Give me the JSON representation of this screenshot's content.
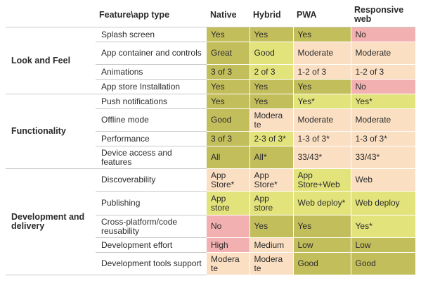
{
  "header": {
    "feature_label": "Feature\\app type",
    "columns": [
      "Native",
      "Hybrid",
      "PWA",
      "Responsive web"
    ]
  },
  "colors": {
    "strong": "#c3be5c",
    "good": "#e3e37c",
    "moderate": "#fbdfc3",
    "no": "#f2b1b0"
  },
  "groups": [
    {
      "category": "Look and Feel",
      "rows": [
        {
          "feature": "Splash screen",
          "cells": [
            {
              "text": "Yes",
              "tone": "great"
            },
            {
              "text": "Yes",
              "tone": "great"
            },
            {
              "text": "Yes",
              "tone": "great"
            },
            {
              "text": "No",
              "tone": "no"
            }
          ]
        },
        {
          "feature": "App container and controls",
          "cells": [
            {
              "text": "Great",
              "tone": "great"
            },
            {
              "text": "Good",
              "tone": "good"
            },
            {
              "text": "Moderate",
              "tone": "mod"
            },
            {
              "text": "Moderate",
              "tone": "mod"
            }
          ]
        },
        {
          "feature": "Animations",
          "cells": [
            {
              "text": "3 of 3",
              "tone": "great"
            },
            {
              "text": "2 of 3",
              "tone": "good"
            },
            {
              "text": "1-2 of 3",
              "tone": "mod"
            },
            {
              "text": "1-2 of 3",
              "tone": "mod"
            }
          ]
        },
        {
          "feature": "App store Installation",
          "cells": [
            {
              "text": "Yes",
              "tone": "great"
            },
            {
              "text": "Yes",
              "tone": "great"
            },
            {
              "text": "Yes",
              "tone": "great"
            },
            {
              "text": "No",
              "tone": "no"
            }
          ]
        }
      ]
    },
    {
      "category": "Functionality",
      "rows": [
        {
          "feature": "Push notifications",
          "cells": [
            {
              "text": "Yes",
              "tone": "great"
            },
            {
              "text": "Yes",
              "tone": "great"
            },
            {
              "text": "Yes*",
              "tone": "good"
            },
            {
              "text": "Yes*",
              "tone": "good"
            }
          ]
        },
        {
          "feature": "Offline mode",
          "cells": [
            {
              "text": "Good",
              "tone": "great"
            },
            {
              "text": "Modera te",
              "tone": "mod"
            },
            {
              "text": "Moderate",
              "tone": "mod"
            },
            {
              "text": "Moderate",
              "tone": "mod"
            }
          ]
        },
        {
          "feature": "Performance",
          "cells": [
            {
              "text": "3 of 3",
              "tone": "great"
            },
            {
              "text": "2-3 of 3*",
              "tone": "good"
            },
            {
              "text": "1-3 of 3*",
              "tone": "mod"
            },
            {
              "text": "1-3 of 3*",
              "tone": "mod"
            }
          ]
        },
        {
          "feature": "Device access and features",
          "cells": [
            {
              "text": "All",
              "tone": "great"
            },
            {
              "text": "All*",
              "tone": "great"
            },
            {
              "text": "33/43*",
              "tone": "mod"
            },
            {
              "text": "33/43*",
              "tone": "mod"
            }
          ]
        }
      ]
    },
    {
      "category": "Development and delivery",
      "rows": [
        {
          "feature": "Discoverability",
          "cells": [
            {
              "text": "App Store*",
              "tone": "mod"
            },
            {
              "text": "App Store*",
              "tone": "mod"
            },
            {
              "text": "App Store+Web",
              "tone": "good"
            },
            {
              "text": "Web",
              "tone": "mod"
            }
          ]
        },
        {
          "feature": "Publishing",
          "cells": [
            {
              "text": "App store",
              "tone": "good"
            },
            {
              "text": "App store",
              "tone": "good"
            },
            {
              "text": "Web deploy*",
              "tone": "good"
            },
            {
              "text": "Web deploy",
              "tone": "good"
            }
          ]
        },
        {
          "feature": "Cross-platform/code reusability",
          "cells": [
            {
              "text": "No",
              "tone": "no"
            },
            {
              "text": "Yes",
              "tone": "great"
            },
            {
              "text": "Yes",
              "tone": "great"
            },
            {
              "text": "Yes*",
              "tone": "good"
            }
          ]
        },
        {
          "feature": "Development effort",
          "cells": [
            {
              "text": "High",
              "tone": "no"
            },
            {
              "text": "Medium",
              "tone": "mod"
            },
            {
              "text": "Low",
              "tone": "great"
            },
            {
              "text": "Low",
              "tone": "great"
            }
          ]
        },
        {
          "feature": "Development tools support",
          "cells": [
            {
              "text": "Modera te",
              "tone": "mod"
            },
            {
              "text": "Modera te",
              "tone": "mod"
            },
            {
              "text": "Good",
              "tone": "great"
            },
            {
              "text": "Good",
              "tone": "great"
            }
          ]
        }
      ]
    }
  ]
}
